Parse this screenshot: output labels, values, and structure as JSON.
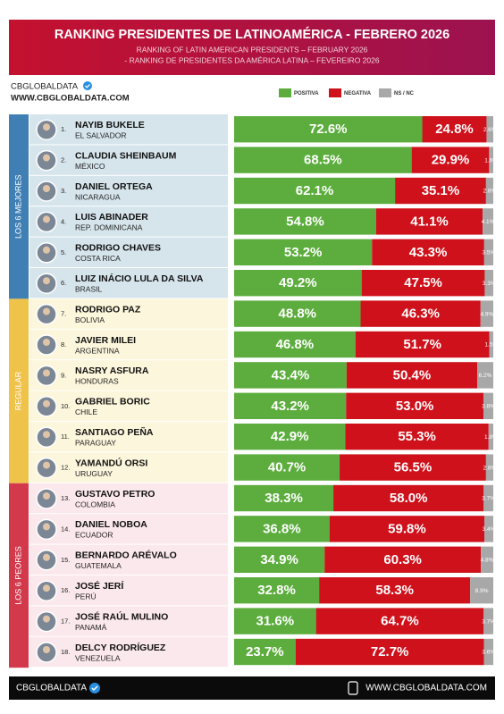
{
  "chart_data": {
    "type": "bar",
    "orientation": "horizontal",
    "stacked": true,
    "title": "RANKING PRESIDENTES DE LATINOAMÉRICA - FEBRERO 2026",
    "subtitles": [
      "RANKING OF LATIN AMERICAN PRESIDENTS – FEBRUARY 2026",
      "- RANKING DE PRESIDENTES DA AMÉRICA LATINA – FEVEREIRO 2026"
    ],
    "branding": {
      "name": "CBGLOBALDATA",
      "website": "WWW.CBGLOBALDATA.COM"
    },
    "xlim": [
      0,
      100
    ],
    "groups": [
      {
        "label": "LOS 6 MEJORES",
        "color": "#3f7fb4",
        "background": "#d6e5ec",
        "categories": [
          {
            "rank": "1.",
            "name": "NAYIB BUKELE",
            "country": "EL SALVADOR"
          },
          {
            "rank": "2.",
            "name": "CLAUDIA SHEINBAUM",
            "country": "MÉXICO"
          },
          {
            "rank": "3.",
            "name": "DANIEL ORTEGA",
            "country": "NICARAGUA"
          },
          {
            "rank": "4.",
            "name": "LUIS ABINADER",
            "country": "REP. DOMINICANA"
          },
          {
            "rank": "5.",
            "name": "RODRIGO CHAVES",
            "country": "COSTA RICA"
          },
          {
            "rank": "6.",
            "name": "LUIZ INÁCIO LULA DA SILVA",
            "country": "BRASIL"
          }
        ]
      },
      {
        "label": "REGULAR",
        "color": "#efc24a",
        "background": "#fcf6dc",
        "categories": [
          {
            "rank": "7.",
            "name": "RODRIGO PAZ",
            "country": "BOLIVIA"
          },
          {
            "rank": "8.",
            "name": "JAVIER MILEI",
            "country": "ARGENTINA"
          },
          {
            "rank": "9.",
            "name": "NASRY ASFURA",
            "country": "HONDURAS"
          },
          {
            "rank": "10.",
            "name": "GABRIEL BORIC",
            "country": "CHILE"
          },
          {
            "rank": "11.",
            "name": "SANTIAGO PEÑA",
            "country": "PARAGUAY"
          },
          {
            "rank": "12.",
            "name": "YAMANDÚ ORSI",
            "country": "URUGUAY"
          }
        ]
      },
      {
        "label": "LOS 6 PEORES",
        "color": "#d23a4c",
        "background": "#fbe8ec",
        "categories": [
          {
            "rank": "13.",
            "name": "GUSTAVO PETRO",
            "country": "COLOMBIA"
          },
          {
            "rank": "14.",
            "name": "DANIEL NOBOA",
            "country": "ECUADOR"
          },
          {
            "rank": "15.",
            "name": "BERNARDO ARÉVALO",
            "country": "GUATEMALA"
          },
          {
            "rank": "16.",
            "name": "JOSÉ JERÍ",
            "country": "PERÚ"
          },
          {
            "rank": "17.",
            "name": "JOSÉ RAÚL MULINO",
            "country": "PANAMÁ"
          },
          {
            "rank": "18.",
            "name": "DELCY RODRÍGUEZ",
            "country": "VENEZUELA"
          }
        ]
      }
    ],
    "series": [
      {
        "name": "POSITIVA",
        "color": "#5cad3d",
        "values": [
          72.6,
          68.5,
          62.1,
          54.8,
          53.2,
          49.2,
          48.8,
          46.8,
          43.4,
          43.2,
          42.9,
          40.7,
          38.3,
          36.8,
          34.9,
          32.8,
          31.6,
          23.7
        ],
        "value_labels": [
          "72.6%",
          "68.5%",
          "62.1%",
          "54.8%",
          "53.2%",
          "49.2%",
          "48.8%",
          "46.8%",
          "43.4%",
          "43.2%",
          "42.9%",
          "40.7%",
          "38.3%",
          "36.8%",
          "34.9%",
          "32.8%",
          "31.6%",
          "23.7%"
        ]
      },
      {
        "name": "NEGATIVA",
        "color": "#cf111b",
        "values": [
          24.8,
          29.9,
          35.1,
          41.1,
          43.3,
          47.5,
          46.3,
          51.7,
          50.4,
          53.0,
          55.3,
          56.5,
          58.0,
          59.8,
          60.3,
          58.3,
          64.7,
          72.7
        ],
        "value_labels": [
          "24.8%",
          "29.9%",
          "35.1%",
          "41.1%",
          "43.3%",
          "47.5%",
          "46.3%",
          "51.7%",
          "50.4%",
          "53.0%",
          "55.3%",
          "56.5%",
          "58.0%",
          "59.8%",
          "60.3%",
          "58.3%",
          "64.7%",
          "72.7%"
        ]
      },
      {
        "name": "NS / NC",
        "color": "#a8a8a8",
        "values": [
          2.6,
          1.6,
          2.8,
          4.1,
          3.5,
          3.3,
          4.9,
          1.5,
          6.2,
          3.8,
          1.8,
          2.8,
          3.7,
          3.4,
          4.8,
          8.9,
          3.7,
          3.6
        ],
        "value_labels": [
          "2.6%",
          "1.6%",
          "2.8%",
          "4.1%",
          "3.5%",
          "3.3%",
          "4.9%",
          "1.5%",
          "6.2%",
          "3.8%",
          "1.8%",
          "2.8%",
          "3.7%",
          "3.4%",
          "4.8%",
          "8.9%",
          "3.7%",
          "3.6%"
        ]
      }
    ]
  }
}
